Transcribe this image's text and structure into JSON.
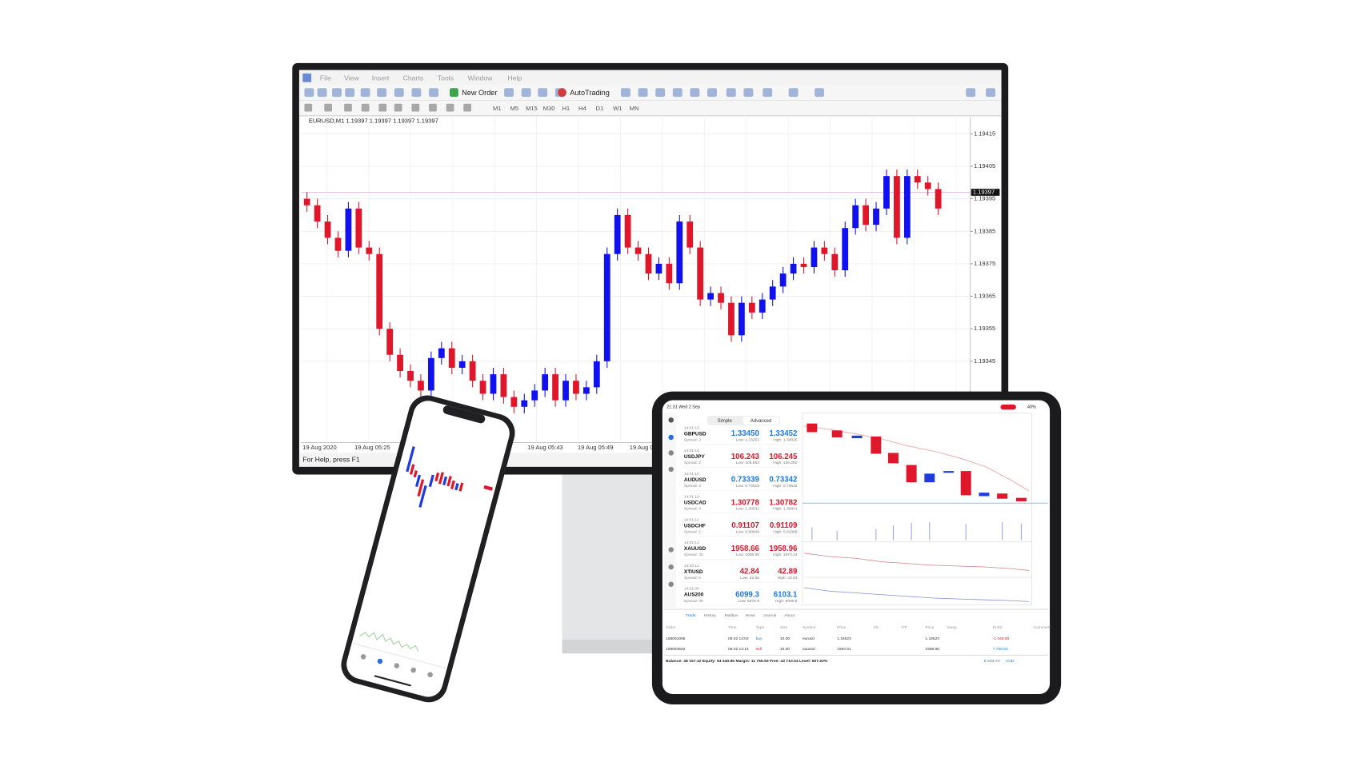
{
  "desktop": {
    "menu": [
      "File",
      "View",
      "Insert",
      "Charts",
      "Tools",
      "Window",
      "Help"
    ],
    "toolbar": [
      "New Order",
      "AutoTrading"
    ],
    "timeframes": [
      "M1",
      "M5",
      "M15",
      "M30",
      "H1",
      "H4",
      "D1",
      "W1",
      "MN"
    ],
    "status": "For Help, press F1"
  },
  "chart_data": {
    "type": "candlestick",
    "title": "EURUSD,M1  1.19397 1.19397 1.19397 1.19397",
    "open": [
      1.19395,
      1.19393,
      1.19388,
      1.19383,
      1.19379,
      1.19392,
      1.1938,
      1.19378,
      1.19355,
      1.19347,
      1.19342,
      1.19339,
      1.19336,
      1.19346,
      1.19349,
      1.19343,
      1.19345,
      1.19339,
      1.19335,
      1.19341,
      1.19334,
      1.19331,
      1.19333,
      1.19336,
      1.19341,
      1.19333,
      1.19339,
      1.19335,
      1.19337,
      1.19345,
      1.19378,
      1.1939,
      1.1938,
      1.19378,
      1.19372,
      1.19375,
      1.19369,
      1.19388,
      1.1938,
      1.19364,
      1.19366,
      1.19363,
      1.19353,
      1.19363,
      1.1936,
      1.19364,
      1.19368,
      1.19372,
      1.19375,
      1.19374,
      1.1938,
      1.19378,
      1.19373,
      1.19386,
      1.19393,
      1.19387,
      1.19392,
      1.19402,
      1.19383,
      1.19402,
      1.194,
      1.19398
    ],
    "high": [
      1.19397,
      1.19395,
      1.1939,
      1.19385,
      1.19394,
      1.19394,
      1.19382,
      1.1938,
      1.19357,
      1.19349,
      1.19344,
      1.19341,
      1.19348,
      1.19351,
      1.19351,
      1.19347,
      1.19347,
      1.19341,
      1.19343,
      1.19343,
      1.19336,
      1.19335,
      1.19338,
      1.19343,
      1.19343,
      1.19341,
      1.19341,
      1.19339,
      1.19347,
      1.1938,
      1.19392,
      1.19392,
      1.19382,
      1.1938,
      1.19377,
      1.19377,
      1.1939,
      1.1939,
      1.19382,
      1.19368,
      1.19368,
      1.19365,
      1.19365,
      1.19365,
      1.19366,
      1.1937,
      1.19374,
      1.19377,
      1.19377,
      1.19382,
      1.19382,
      1.1938,
      1.19388,
      1.19395,
      1.19395,
      1.19394,
      1.19404,
      1.19404,
      1.19404,
      1.19404,
      1.19402,
      1.194
    ],
    "low": [
      1.19391,
      1.19386,
      1.19381,
      1.19377,
      1.19377,
      1.19378,
      1.19376,
      1.19353,
      1.19345,
      1.1934,
      1.19337,
      1.19334,
      1.19334,
      1.19344,
      1.19341,
      1.19341,
      1.19337,
      1.19333,
      1.19333,
      1.19332,
      1.19329,
      1.19329,
      1.19331,
      1.19334,
      1.19331,
      1.19331,
      1.19333,
      1.19333,
      1.19335,
      1.19343,
      1.19376,
      1.19378,
      1.19376,
      1.1937,
      1.1937,
      1.19367,
      1.19367,
      1.19378,
      1.19362,
      1.19362,
      1.19361,
      1.19351,
      1.19351,
      1.19358,
      1.19358,
      1.19362,
      1.19366,
      1.1937,
      1.19372,
      1.19372,
      1.19376,
      1.19371,
      1.19371,
      1.19384,
      1.19385,
      1.19385,
      1.1939,
      1.19381,
      1.19381,
      1.19398,
      1.19396,
      1.1939
    ],
    "close": [
      1.19393,
      1.19388,
      1.19383,
      1.19379,
      1.19392,
      1.1938,
      1.19378,
      1.19355,
      1.19347,
      1.19342,
      1.19339,
      1.19336,
      1.19346,
      1.19349,
      1.19343,
      1.19345,
      1.19339,
      1.19335,
      1.19341,
      1.19334,
      1.19331,
      1.19333,
      1.19336,
      1.19341,
      1.19333,
      1.19339,
      1.19335,
      1.19337,
      1.19345,
      1.19378,
      1.1939,
      1.1938,
      1.19378,
      1.19372,
      1.19375,
      1.19369,
      1.19388,
      1.1938,
      1.19364,
      1.19366,
      1.19363,
      1.19353,
      1.19363,
      1.1936,
      1.19364,
      1.19368,
      1.19372,
      1.19375,
      1.19374,
      1.1938,
      1.19378,
      1.19373,
      1.19386,
      1.19393,
      1.19387,
      1.19392,
      1.19402,
      1.19383,
      1.19402,
      1.194,
      1.19398,
      1.19392
    ],
    "up_color": "#1010f0",
    "down_color": "#e0162b",
    "ylim": [
      1.1932,
      1.1942
    ],
    "yticks": [
      1.19345,
      1.19355,
      1.19365,
      1.19375,
      1.19385,
      1.19395,
      1.19405,
      1.19415
    ],
    "last_price": 1.19397,
    "time_labels": [
      "19 Aug 2020",
      "19 Aug 05:25",
      "19 Aug 05:43",
      "19 Aug 05:49",
      "19 Aug 05:55"
    ],
    "grid": true
  },
  "tablet": {
    "status_time": "21:31  Wed 2 Sep",
    "battery": "40%",
    "modes": [
      "Simple",
      "Advanced"
    ],
    "quotes": [
      {
        "time": "14:01:10",
        "symbol": "GBPUSD",
        "spread": "Spread: 2",
        "bid": "1.33450",
        "ask": "1.33452",
        "low": "Low: 1.33253",
        "high": "High: 1.34025",
        "color": "#1e7be0"
      },
      {
        "time": "14:01:10",
        "symbol": "USDJPY",
        "spread": "Spread: 2",
        "bid": "106.243",
        "ask": "106.245",
        "low": "Low: 105.853",
        "high": "High: 106.250",
        "color": "#e0162b"
      },
      {
        "time": "14:01:10",
        "symbol": "AUDUSD",
        "spread": "Spread: 3",
        "bid": "0.73339",
        "ask": "0.73342",
        "low": "Low: 0.73019",
        "high": "High: 0.73618",
        "color": "#1e7be0"
      },
      {
        "time": "14:01:10",
        "symbol": "USDCAD",
        "spread": "Spread: 4",
        "bid": "1.30778",
        "ask": "1.30782",
        "low": "Low: 1.30531",
        "high": "High: 1.30841",
        "color": "#e0162b"
      },
      {
        "time": "14:01:11",
        "symbol": "USDCHF",
        "spread": "Spread: 2",
        "bid": "0.91107",
        "ask": "0.91109",
        "low": "Low: 0.90849",
        "high": "High: 0.91068",
        "color": "#e0162b"
      },
      {
        "time": "14:01:12",
        "symbol": "XAUUSD",
        "spread": "Spread: 30",
        "bid": "1958.66",
        "ask": "1958.96",
        "low": "Low: 1955.99",
        "high": "High: 1973.24",
        "color": "#e0162b"
      },
      {
        "time": "14:00:11",
        "symbol": "XTIUSD",
        "spread": "Spread: 5",
        "bid": "42.84",
        "ask": "42.89",
        "low": "Low: 42.65",
        "high": "High: 43.04",
        "color": "#e0162b"
      },
      {
        "time": "14:01:00",
        "symbol": "AUS200",
        "spread": "Spread: 38",
        "bid": "6099.3",
        "ask": "6103.1",
        "low": "Low: 5975.8",
        "high": "High: 6099.8",
        "color": "#1e7be0"
      }
    ],
    "tabs": [
      "Trade",
      "History",
      "Mailbox",
      "News",
      "Journal",
      "About"
    ],
    "table": {
      "headers": [
        "Order",
        "Time",
        "Type",
        "Size",
        "Symbol",
        "Price",
        "S/L",
        "T/P",
        "Price",
        "Swap",
        "Profit",
        "Comment"
      ],
      "rows": [
        {
          "order": "168091095",
          "time": "09.02 14:02",
          "type": "buy",
          "size": "10.00",
          "symbol": "eurusd",
          "price": "1.18623",
          "current": "1.18623",
          "profit": "-1 349.80"
        },
        {
          "order": "168093602",
          "time": "09.02 14:14",
          "type": "sell",
          "size": "10.00",
          "symbol": "xauusd",
          "price": "1964.61",
          "current": "1958.96",
          "profit": "7 700.63"
        }
      ]
    },
    "summary": "Balance: 48 157.12 Equity: 54 440.86 Margin: 11 755.93 Free: 43 710.04 Level: 507.22%",
    "summary_total": "6 283.74",
    "currency": "AUD"
  }
}
